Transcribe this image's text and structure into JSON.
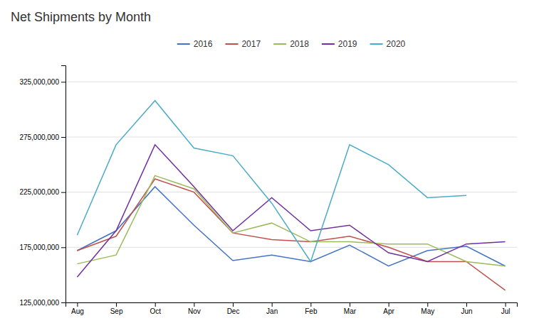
{
  "chart_data": {
    "type": "line",
    "title": "Net Shipments by Month",
    "categories": [
      "Aug",
      "Sep",
      "Oct",
      "Nov",
      "Dec",
      "Jan",
      "Feb",
      "Mar",
      "Apr",
      "May",
      "Jun",
      "Jul"
    ],
    "series": [
      {
        "name": "2016",
        "color": "#4472C4",
        "values": [
          172000000,
          190000000,
          230000000,
          195000000,
          163000000,
          168000000,
          162000000,
          177000000,
          158000000,
          172000000,
          176000000,
          158000000
        ]
      },
      {
        "name": "2017",
        "color": "#C0504D",
        "values": [
          172000000,
          185000000,
          237000000,
          225000000,
          188000000,
          182000000,
          180000000,
          185000000,
          175000000,
          162000000,
          162000000,
          136000000
        ]
      },
      {
        "name": "2018",
        "color": "#9BBB59",
        "values": [
          160000000,
          168000000,
          240000000,
          228000000,
          188000000,
          197000000,
          180000000,
          180000000,
          178000000,
          178000000,
          162000000,
          158000000
        ]
      },
      {
        "name": "2019",
        "color": "#7030A0",
        "values": [
          148000000,
          190000000,
          268000000,
          230000000,
          190000000,
          220000000,
          190000000,
          195000000,
          170000000,
          162000000,
          178000000,
          180000000
        ]
      },
      {
        "name": "2020",
        "color": "#4BACC6",
        "values": [
          186000000,
          268000000,
          308000000,
          265000000,
          258000000,
          215000000,
          162000000,
          268000000,
          250000000,
          220000000,
          222000000,
          null
        ]
      }
    ],
    "ylim": [
      125000000,
      340000000
    ],
    "yticks": [
      {
        "value": 125000000,
        "label": "125,000,000"
      },
      {
        "value": 175000000,
        "label": "175,000,000"
      },
      {
        "value": 225000000,
        "label": "225,000,000"
      },
      {
        "value": 275000000,
        "label": "275,000,000"
      },
      {
        "value": 325000000,
        "label": "325,000,000"
      }
    ],
    "grid": true,
    "legend": "top"
  }
}
